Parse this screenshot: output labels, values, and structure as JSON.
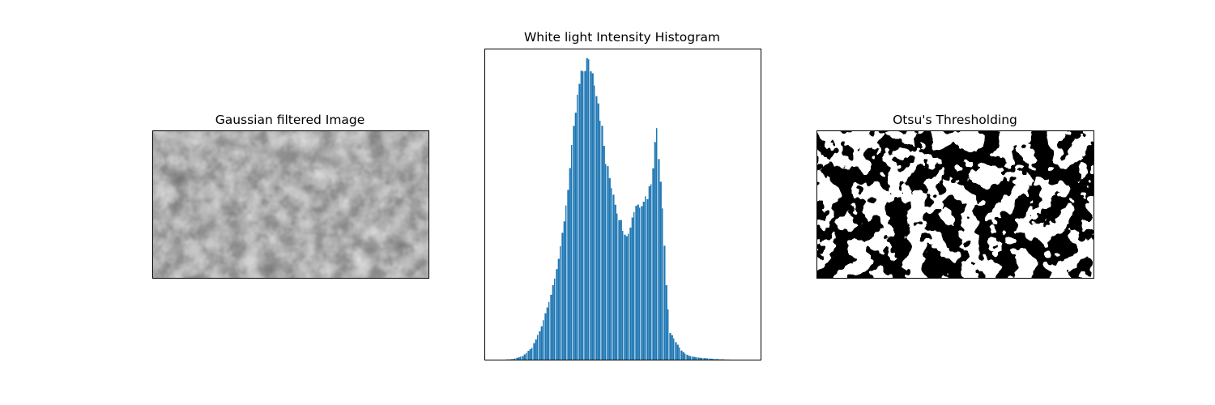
{
  "chart_data": [
    {
      "type": "image",
      "title": "Gaussian filtered Image",
      "colormap": "gray",
      "axis": "off"
    },
    {
      "type": "bar",
      "title": "White light Intensity Histogram",
      "xlabel": "",
      "ylabel": "",
      "axis_ticks": "off",
      "color": "#1f77b4",
      "grid": false,
      "profile": [
        [
          0,
          0
        ],
        [
          5,
          0.2
        ],
        [
          10,
          1.2
        ],
        [
          15,
          4
        ],
        [
          20,
          11
        ],
        [
          25,
          22
        ],
        [
          30,
          37
        ],
        [
          33,
          52
        ],
        [
          36,
          70
        ],
        [
          38,
          83
        ],
        [
          40,
          92
        ],
        [
          42,
          97
        ],
        [
          44,
          100
        ],
        [
          46,
          98
        ],
        [
          48,
          94
        ],
        [
          50,
          87
        ],
        [
          52,
          77
        ],
        [
          54,
          66
        ],
        [
          56,
          61
        ],
        [
          58,
          56
        ],
        [
          60,
          50
        ],
        [
          62,
          46
        ],
        [
          64,
          43
        ],
        [
          66,
          42
        ],
        [
          68,
          48
        ],
        [
          70,
          52
        ],
        [
          72,
          52
        ],
        [
          74,
          54
        ],
        [
          76,
          55
        ],
        [
          78,
          60
        ],
        [
          80,
          72
        ],
        [
          81,
          78
        ],
        [
          82,
          69
        ],
        [
          84,
          52
        ],
        [
          86,
          25
        ],
        [
          88,
          9
        ],
        [
          90,
          7
        ],
        [
          92,
          5
        ],
        [
          94,
          3
        ],
        [
          96,
          2
        ],
        [
          98,
          1.3
        ],
        [
          100,
          1
        ],
        [
          104,
          0.6
        ],
        [
          108,
          0.4
        ],
        [
          112,
          0.2
        ],
        [
          116,
          0.1
        ],
        [
          120,
          0
        ]
      ],
      "bars": 120,
      "xlim": [
        0,
        128
      ],
      "ylim": [
        0,
        103
      ]
    },
    {
      "type": "image",
      "title": "Otsu's Thresholding",
      "colormap": "binary",
      "axis": "off"
    }
  ]
}
